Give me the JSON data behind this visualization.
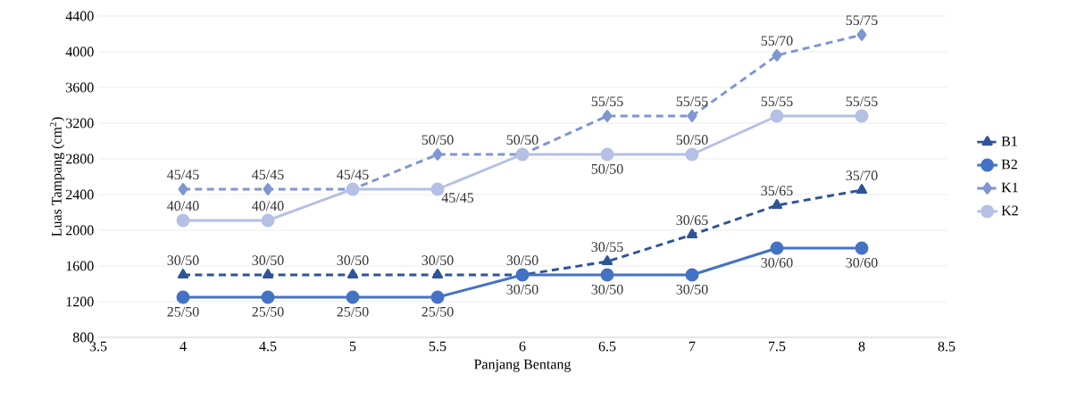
{
  "chart_data": {
    "type": "line",
    "xlabel": "Panjang Bentang",
    "ylabel": "Luas Tampang (cm$^{2}$)",
    "x": [
      4,
      4.5,
      5,
      5.5,
      6,
      6.5,
      7,
      7.5,
      8
    ],
    "series": [
      {
        "name": "B1",
        "color": "#2f5597",
        "marker": "triangle",
        "line_style": "dashed",
        "values": [
          1500,
          1500,
          1500,
          1500,
          1500,
          1650,
          1950,
          2280,
          2450
        ],
        "value_labels": [
          "30/50",
          "30/50",
          "30/50",
          "30/50",
          "30/50",
          "30/55",
          "30/65",
          "35/65",
          "35/70"
        ]
      },
      {
        "name": "B2",
        "color": "#4472c4",
        "marker": "circle",
        "line_style": "solid",
        "values": [
          1250,
          1250,
          1250,
          1250,
          1500,
          1500,
          1500,
          1800,
          1800
        ],
        "value_labels": [
          "25/50",
          "25/50",
          "25/50",
          "25/50",
          "30/50",
          "30/50",
          "30/50",
          "30/60",
          "30/60"
        ]
      },
      {
        "name": "K1",
        "color": "#7f96d3",
        "marker": "diamond",
        "line_style": "dashed",
        "values": [
          2460,
          2460,
          2460,
          2850,
          2850,
          3280,
          3280,
          3960,
          4190
        ],
        "value_labels": [
          "45/45",
          "45/45",
          "45/45",
          "50/50",
          null,
          "55/55",
          "55/55",
          "55/70",
          "55/75"
        ]
      },
      {
        "name": "K2",
        "color": "#b4c0e4",
        "marker": "circle",
        "line_style": "solid",
        "values": [
          2110,
          2110,
          2460,
          2460,
          2850,
          2850,
          2850,
          3280,
          3280
        ],
        "value_labels": [
          "40/40",
          "40/40",
          null,
          "45/45",
          "50/50",
          "50/50",
          "50/50",
          "55/55",
          "55/55"
        ]
      }
    ],
    "xlim": [
      3.5,
      8.5
    ],
    "xticks": [
      3.5,
      4,
      4.5,
      5,
      5.5,
      6,
      6.5,
      7,
      7.5,
      8,
      8.5
    ],
    "ylim": [
      800,
      4400
    ],
    "yticks": [
      800,
      1200,
      1600,
      2000,
      2400,
      2800,
      3200,
      3600,
      4000,
      4400
    ],
    "grid": "y",
    "legend": "right"
  }
}
